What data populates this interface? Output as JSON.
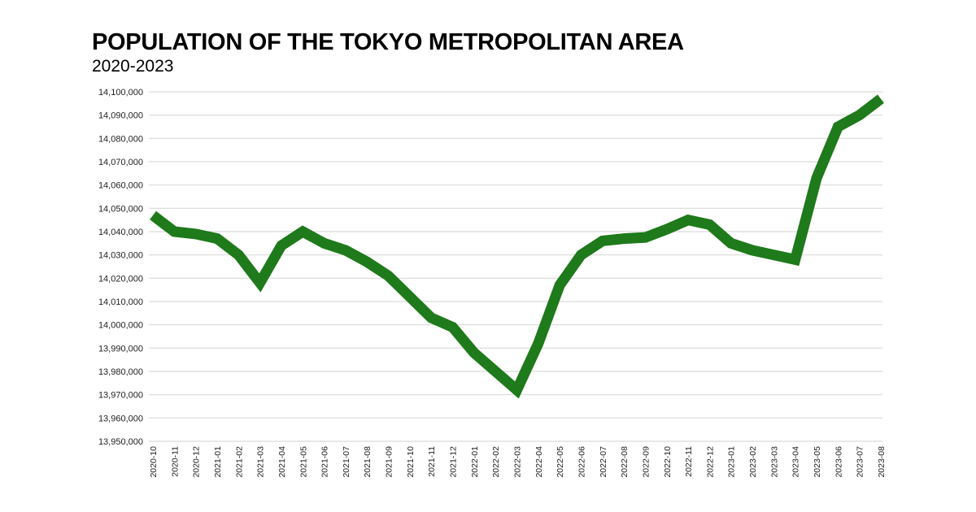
{
  "chart_data": {
    "type": "line",
    "title": "POPULATION OF THE TOKYO METROPOLITAN AREA",
    "subtitle": "2020-2023",
    "xlabel": "",
    "ylabel": "",
    "ylim": [
      13950000,
      14100000
    ],
    "yticks": [
      "13,950,000",
      "13,960,000",
      "13,970,000",
      "13,980,000",
      "13,990,000",
      "14,000,000",
      "14,010,000",
      "14,020,000",
      "14,030,000",
      "14,040,000",
      "14,050,000",
      "14,060,000",
      "14,070,000",
      "14,080,000",
      "14,090,000",
      "14,100,000"
    ],
    "grid": true,
    "legend": "none",
    "line_color": "#1e7a1a",
    "categories": [
      "2020-10",
      "2020-11",
      "2020-12",
      "2021-01",
      "2021-02",
      "2021-03",
      "2021-04",
      "2021-05",
      "2021-06",
      "2021-07",
      "2021-08",
      "2021-09",
      "2021-10",
      "2021-11",
      "2021-12",
      "2022-01",
      "2022-02",
      "2022-03",
      "2022-04",
      "2022-05",
      "2022-06",
      "2022-07",
      "2022-08",
      "2022-09",
      "2022-10",
      "2022-11",
      "2022-12",
      "2023-01",
      "2023-02",
      "2023-03",
      "2023-04",
      "2023-05",
      "2023-06",
      "2023-07",
      "2023-08"
    ],
    "values": [
      14047000,
      14040000,
      14039000,
      14037000,
      14030000,
      14018000,
      14034000,
      14040000,
      14035000,
      14032000,
      14027000,
      14021000,
      14012000,
      14003000,
      13999000,
      13988000,
      13980000,
      13972000,
      13992000,
      14017000,
      14030000,
      14036000,
      14037000,
      14037500,
      14041000,
      14045000,
      14043000,
      14035000,
      14032000,
      14030000,
      14028000,
      14063000,
      14085000,
      14090000,
      14097000
    ]
  }
}
